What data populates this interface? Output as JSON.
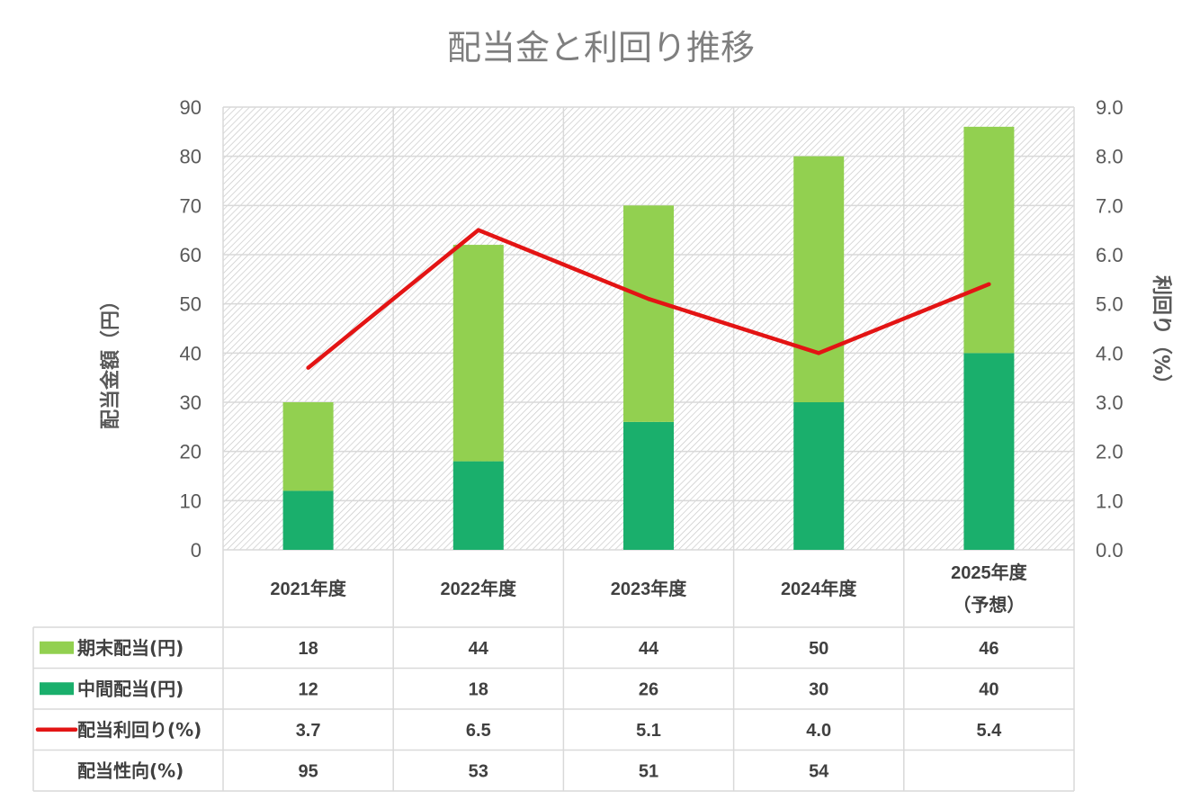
{
  "colors": {
    "period_end": "#92d050",
    "interim": "#1aaf6c",
    "yield_line": "#e31414",
    "grid": "#d9d9d9",
    "title": "#7f7f7f"
  },
  "chart_data": {
    "type": "bar",
    "stacked": true,
    "title": "配当金と利回り推移",
    "ylabel": "配当金額（円）",
    "y2label": "利回り（%）",
    "ylim": [
      0,
      90
    ],
    "y2lim": [
      0,
      9.0
    ],
    "yticks": [
      "0",
      "10",
      "20",
      "30",
      "40",
      "50",
      "60",
      "70",
      "80",
      "90"
    ],
    "y2ticks": [
      "0.0",
      "1.0",
      "2.0",
      "3.0",
      "4.0",
      "5.0",
      "6.0",
      "7.0",
      "8.0",
      "9.0"
    ],
    "categories": [
      {
        "line1": "2021年度",
        "line2": ""
      },
      {
        "line1": "2022年度",
        "line2": ""
      },
      {
        "line1": "2023年度",
        "line2": ""
      },
      {
        "line1": "2024年度",
        "line2": ""
      },
      {
        "line1": "2025年度",
        "line2": "（予想）"
      }
    ],
    "series": [
      {
        "key": "interim",
        "name": "中間配当(円)",
        "type": "bar",
        "axis": "left",
        "values": [
          12,
          18,
          26,
          30,
          40
        ],
        "labels": [
          "12",
          "18",
          "26",
          "30",
          "40"
        ]
      },
      {
        "key": "period_end",
        "name": "期末配当(円)",
        "type": "bar",
        "axis": "left",
        "values": [
          18,
          44,
          44,
          50,
          46
        ],
        "labels": [
          "18",
          "44",
          "44",
          "50",
          "46"
        ]
      },
      {
        "key": "yield",
        "name": "配当利回り(%)",
        "type": "line",
        "axis": "right",
        "values": [
          3.7,
          6.5,
          5.1,
          4.0,
          5.4
        ],
        "labels": [
          "3.7",
          "6.5",
          "5.1",
          "4.0",
          "5.4"
        ]
      }
    ],
    "table_rows": [
      {
        "key": "period_end",
        "label": "期末配当(円)",
        "marker": "bar",
        "values": [
          "18",
          "44",
          "44",
          "50",
          "46"
        ]
      },
      {
        "key": "interim",
        "label": "中間配当(円)",
        "marker": "bar",
        "values": [
          "12",
          "18",
          "26",
          "30",
          "40"
        ]
      },
      {
        "key": "yield",
        "label": "配当利回り(%)",
        "marker": "line",
        "values": [
          "3.7",
          "6.5",
          "5.1",
          "4.0",
          "5.4"
        ]
      },
      {
        "key": "payout",
        "label": "配当性向(%)",
        "marker": "none",
        "values": [
          "95",
          "53",
          "51",
          "54",
          ""
        ]
      }
    ]
  }
}
